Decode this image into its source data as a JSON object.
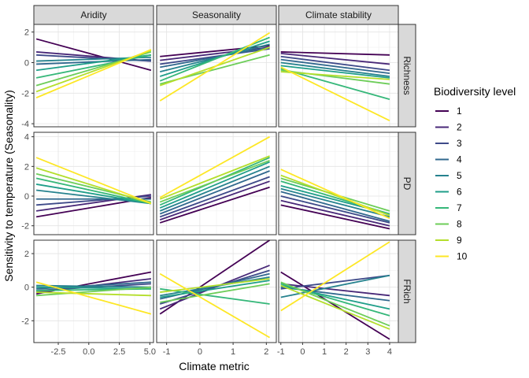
{
  "chart_data": {
    "type": "line",
    "layout": "faceted-grid",
    "xlabel": "Climate metric",
    "ylabel": "Sensitivity to temperature (Seasonality)",
    "columns": [
      "Aridity",
      "Seasonality",
      "Climate stability"
    ],
    "rows": [
      "Richness",
      "PD",
      "FRich"
    ],
    "legend": {
      "title": "Biodiversity level",
      "position": "right",
      "levels": [
        "1",
        "2",
        "3",
        "4",
        "5",
        "6",
        "7",
        "8",
        "9",
        "10"
      ],
      "colors": [
        "#440154",
        "#482878",
        "#3E4A89",
        "#31688E",
        "#26828E",
        "#1F9E89",
        "#35B779",
        "#6DCD59",
        "#B4DE2C",
        "#FDE725"
      ]
    },
    "x_axes": [
      {
        "range": [
          -4.5,
          5.3
        ],
        "ticks": [
          -2.5,
          0.0,
          2.5,
          5.0
        ],
        "tick_labels": [
          "-2.5",
          "0.0",
          "2.5",
          "5.0"
        ],
        "x": [
          -4.3,
          5.1
        ]
      },
      {
        "range": [
          -1.3,
          2.3
        ],
        "ticks": [
          -1,
          0,
          1,
          2
        ],
        "tick_labels": [
          "-1",
          "0",
          "1",
          "2"
        ],
        "x": [
          -1.2,
          2.1
        ]
      },
      {
        "range": [
          -1.1,
          4.4
        ],
        "ticks": [
          -1,
          0,
          1,
          2,
          3,
          4
        ],
        "tick_labels": [
          "-1",
          "0",
          "1",
          "2",
          "3",
          "4"
        ],
        "x": [
          -1.0,
          4.0
        ]
      }
    ],
    "y_axes": [
      {
        "range": [
          -4.2,
          2.5
        ],
        "ticks": [
          -4,
          -2,
          0,
          2
        ],
        "tick_labels": [
          "-4",
          "-2",
          "0",
          "2"
        ]
      },
      {
        "range": [
          -2.6,
          4.3
        ],
        "ticks": [
          -2,
          0,
          2,
          4
        ],
        "tick_labels": [
          "-2",
          "0",
          "2",
          "4"
        ]
      },
      {
        "range": [
          -3.3,
          2.8
        ],
        "ticks": [
          -2,
          0,
          2
        ],
        "tick_labels": [
          "-2",
          "0",
          "2"
        ]
      }
    ],
    "grid": true,
    "panels": [
      {
        "row": "Richness",
        "col": "Aridity",
        "series": [
          {
            "level": "1",
            "y": [
              1.55,
              -0.5
            ]
          },
          {
            "level": "2",
            "y": [
              0.7,
              0.1
            ]
          },
          {
            "level": "3",
            "y": [
              0.5,
              0.1
            ]
          },
          {
            "level": "4",
            "y": [
              -0.1,
              0.2
            ]
          },
          {
            "level": "5",
            "y": [
              0.1,
              0.35
            ]
          },
          {
            "level": "6",
            "y": [
              -0.5,
              0.5
            ]
          },
          {
            "level": "7",
            "y": [
              -1.0,
              0.5
            ]
          },
          {
            "level": "8",
            "y": [
              -1.5,
              0.7
            ]
          },
          {
            "level": "9",
            "y": [
              -1.9,
              0.8
            ]
          },
          {
            "level": "10",
            "y": [
              -2.3,
              0.85
            ]
          }
        ]
      },
      {
        "row": "Richness",
        "col": "Seasonality",
        "series": [
          {
            "level": "1",
            "y": [
              0.4,
              1.1
            ]
          },
          {
            "level": "2",
            "y": [
              0.15,
              1.0
            ]
          },
          {
            "level": "3",
            "y": [
              -0.1,
              0.9
            ]
          },
          {
            "level": "4",
            "y": [
              -0.3,
              1.0
            ]
          },
          {
            "level": "5",
            "y": [
              -0.6,
              1.2
            ]
          },
          {
            "level": "6",
            "y": [
              -0.9,
              1.4
            ]
          },
          {
            "level": "7",
            "y": [
              -1.2,
              1.65
            ]
          },
          {
            "level": "8",
            "y": [
              -1.4,
              0.5
            ]
          },
          {
            "level": "9",
            "y": [
              -1.5,
              1.0
            ]
          },
          {
            "level": "10",
            "y": [
              -2.5,
              1.95
            ]
          }
        ]
      },
      {
        "row": "Richness",
        "col": "Climate stability",
        "series": [
          {
            "level": "1",
            "y": [
              0.7,
              0.5
            ]
          },
          {
            "level": "2",
            "y": [
              0.6,
              -0.1
            ]
          },
          {
            "level": "3",
            "y": [
              0.4,
              -0.5
            ]
          },
          {
            "level": "4",
            "y": [
              0.2,
              -0.7
            ]
          },
          {
            "level": "5",
            "y": [
              0.0,
              -0.9
            ]
          },
          {
            "level": "6",
            "y": [
              -0.2,
              -1.0
            ]
          },
          {
            "level": "7",
            "y": [
              -0.4,
              -2.4
            ]
          },
          {
            "level": "8",
            "y": [
              -0.5,
              -1.4
            ]
          },
          {
            "level": "9",
            "y": [
              -0.6,
              -1.1
            ]
          },
          {
            "level": "10",
            "y": [
              -0.3,
              -3.8
            ]
          }
        ]
      },
      {
        "row": "PD",
        "col": "Aridity",
        "series": [
          {
            "level": "1",
            "y": [
              -1.4,
              -0.1
            ]
          },
          {
            "level": "2",
            "y": [
              -1.0,
              0.1
            ]
          },
          {
            "level": "3",
            "y": [
              -0.6,
              0.0
            ]
          },
          {
            "level": "4",
            "y": [
              -0.2,
              -0.2
            ]
          },
          {
            "level": "5",
            "y": [
              0.4,
              -0.5
            ]
          },
          {
            "level": "6",
            "y": [
              0.8,
              -0.5
            ]
          },
          {
            "level": "7",
            "y": [
              1.2,
              -0.5
            ]
          },
          {
            "level": "8",
            "y": [
              1.5,
              -0.4
            ]
          },
          {
            "level": "9",
            "y": [
              1.9,
              -0.5
            ]
          },
          {
            "level": "10",
            "y": [
              2.6,
              -0.5
            ]
          }
        ]
      },
      {
        "row": "PD",
        "col": "Seasonality",
        "series": [
          {
            "level": "1",
            "y": [
              -1.8,
              0.6
            ]
          },
          {
            "level": "2",
            "y": [
              -1.6,
              1.0
            ]
          },
          {
            "level": "3",
            "y": [
              -1.4,
              1.3
            ]
          },
          {
            "level": "4",
            "y": [
              -1.2,
              1.7
            ]
          },
          {
            "level": "5",
            "y": [
              -1.0,
              2.0
            ]
          },
          {
            "level": "6",
            "y": [
              -0.8,
              2.3
            ]
          },
          {
            "level": "7",
            "y": [
              -0.6,
              2.6
            ]
          },
          {
            "level": "8",
            "y": [
              -0.4,
              2.4
            ]
          },
          {
            "level": "9",
            "y": [
              -0.2,
              2.7
            ]
          },
          {
            "level": "10",
            "y": [
              -0.1,
              4.0
            ]
          }
        ]
      },
      {
        "row": "PD",
        "col": "Climate stability",
        "series": [
          {
            "level": "1",
            "y": [
              -0.6,
              -2.2
            ]
          },
          {
            "level": "2",
            "y": [
              -0.3,
              -2.0
            ]
          },
          {
            "level": "3",
            "y": [
              0.0,
              -1.8
            ]
          },
          {
            "level": "4",
            "y": [
              0.3,
              -1.7
            ]
          },
          {
            "level": "5",
            "y": [
              0.5,
              -1.4
            ]
          },
          {
            "level": "6",
            "y": [
              0.7,
              -1.2
            ]
          },
          {
            "level": "7",
            "y": [
              1.0,
              -1.2
            ]
          },
          {
            "level": "8",
            "y": [
              1.2,
              -1.0
            ]
          },
          {
            "level": "9",
            "y": [
              1.4,
              -1.3
            ]
          },
          {
            "level": "10",
            "y": [
              1.8,
              -1.5
            ]
          }
        ]
      },
      {
        "row": "FRich",
        "col": "Aridity",
        "series": [
          {
            "level": "1",
            "y": [
              -0.4,
              0.9
            ]
          },
          {
            "level": "2",
            "y": [
              -0.3,
              0.5
            ]
          },
          {
            "level": "3",
            "y": [
              -0.2,
              0.2
            ]
          },
          {
            "level": "4",
            "y": [
              -0.1,
              0.3
            ]
          },
          {
            "level": "5",
            "y": [
              0.1,
              0.0
            ]
          },
          {
            "level": "6",
            "y": [
              0.0,
              -0.1
            ]
          },
          {
            "level": "7",
            "y": [
              -0.2,
              -0.1
            ]
          },
          {
            "level": "8",
            "y": [
              -0.5,
              0.0
            ]
          },
          {
            "level": "9",
            "y": [
              -0.3,
              -0.5
            ]
          },
          {
            "level": "10",
            "y": [
              0.3,
              -1.6
            ]
          }
        ]
      },
      {
        "row": "FRich",
        "col": "Seasonality",
        "series": [
          {
            "level": "1",
            "y": [
              -1.6,
              2.8
            ]
          },
          {
            "level": "2",
            "y": [
              -1.3,
              1.3
            ]
          },
          {
            "level": "3",
            "y": [
              -1.0,
              1.0
            ]
          },
          {
            "level": "4",
            "y": [
              -0.7,
              0.8
            ]
          },
          {
            "level": "5",
            "y": [
              -0.5,
              0.6
            ]
          },
          {
            "level": "6",
            "y": [
              -0.6,
              0.4
            ]
          },
          {
            "level": "7",
            "y": [
              -0.1,
              -1.0
            ]
          },
          {
            "level": "8",
            "y": [
              -0.9,
              0.2
            ]
          },
          {
            "level": "9",
            "y": [
              -0.3,
              0.5
            ]
          },
          {
            "level": "10",
            "y": [
              0.8,
              -3.0
            ]
          }
        ]
      },
      {
        "row": "FRich",
        "col": "Climate stability",
        "series": [
          {
            "level": "1",
            "y": [
              0.9,
              -3.1
            ]
          },
          {
            "level": "2",
            "y": [
              0.2,
              -0.5
            ]
          },
          {
            "level": "3",
            "y": [
              -0.1,
              0.7
            ]
          },
          {
            "level": "4",
            "y": [
              0.0,
              -0.8
            ]
          },
          {
            "level": "5",
            "y": [
              -0.6,
              0.7
            ]
          },
          {
            "level": "6",
            "y": [
              0.1,
              -1.3
            ]
          },
          {
            "level": "7",
            "y": [
              0.2,
              -1.7
            ]
          },
          {
            "level": "8",
            "y": [
              0.3,
              -2.3
            ]
          },
          {
            "level": "9",
            "y": [
              0.1,
              -2.5
            ]
          },
          {
            "level": "10",
            "y": [
              -1.4,
              2.7
            ]
          }
        ]
      }
    ]
  }
}
